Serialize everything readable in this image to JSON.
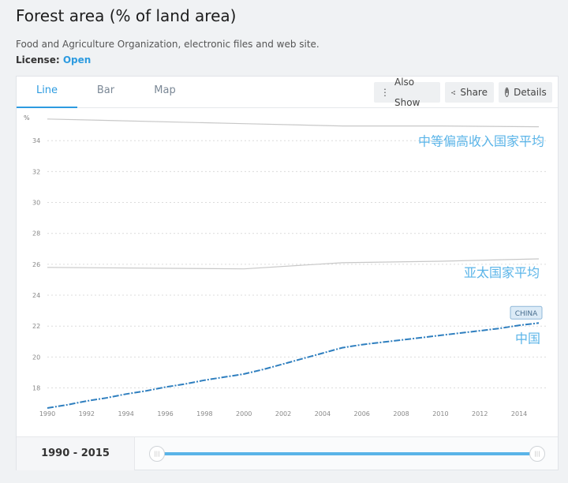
{
  "header": {
    "title": "Forest area (% of land area)",
    "source": "Food and Agriculture Organization, electronic files and web site.",
    "license_label": "License:",
    "license_value": "Open"
  },
  "tabs": [
    {
      "label": "Line",
      "active": true
    },
    {
      "label": "Bar",
      "active": false
    },
    {
      "label": "Map",
      "active": false
    }
  ],
  "toolbar": {
    "also_show": "Also Show",
    "share": "Share",
    "details": "Details"
  },
  "footer": {
    "range": "1990 - 2015",
    "range_start": 1990,
    "range_end": 2015
  },
  "colors": {
    "accent": "#2d9be0",
    "highlight_line": "#2f7fbf",
    "comparison_line": "#c8c8c8",
    "series_label": "#5ab4e8"
  },
  "chart_data": {
    "type": "line",
    "ylabel": "%",
    "xlim": [
      1990,
      2015
    ],
    "ylim": [
      16.8,
      35.8
    ],
    "yticks": [
      18,
      20,
      22,
      24,
      26,
      28,
      30,
      32,
      34
    ],
    "xticks": [
      1990,
      1992,
      1994,
      1996,
      1998,
      2000,
      2002,
      2004,
      2006,
      2008,
      2010,
      2012,
      2014
    ],
    "grid": true,
    "series": [
      {
        "name": "中等偏高收入国家平均",
        "x": [
          1990,
          2000,
          2005,
          2010,
          2015
        ],
        "y": [
          35.4,
          35.1,
          34.95,
          34.95,
          34.9
        ]
      },
      {
        "name": "亚太国家平均",
        "x": [
          1990,
          2000,
          2005,
          2010,
          2015
        ],
        "y": [
          25.8,
          25.7,
          26.1,
          26.2,
          26.35
        ]
      },
      {
        "name": "中国",
        "badge": "CHINA",
        "x": [
          1990,
          1991,
          1992,
          1993,
          1994,
          1995,
          1996,
          1997,
          1998,
          1999,
          2000,
          2001,
          2002,
          2003,
          2004,
          2005,
          2006,
          2007,
          2008,
          2009,
          2010,
          2011,
          2012,
          2013,
          2014,
          2015
        ],
        "y": [
          16.7,
          16.9,
          17.15,
          17.35,
          17.6,
          17.8,
          18.05,
          18.25,
          18.5,
          18.7,
          18.9,
          19.2,
          19.55,
          19.9,
          20.25,
          20.6,
          20.8,
          20.95,
          21.1,
          21.25,
          21.4,
          21.55,
          21.7,
          21.85,
          22.05,
          22.2
        ]
      }
    ]
  }
}
